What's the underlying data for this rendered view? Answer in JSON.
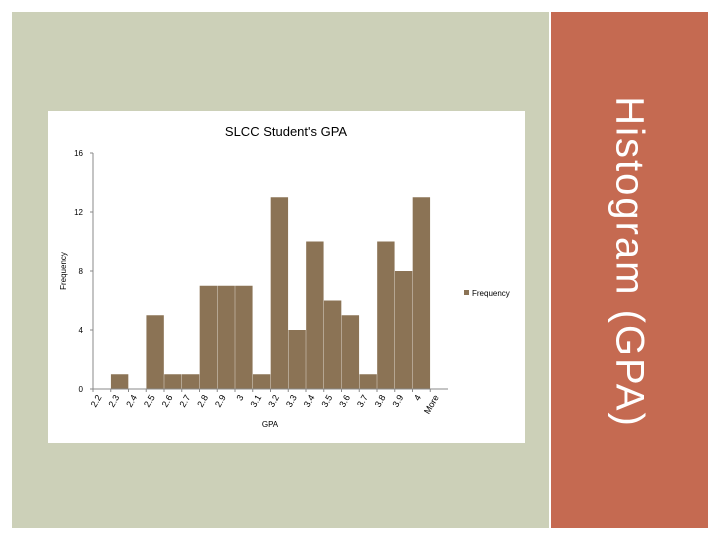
{
  "slide": {
    "side_title": "Histogram (GPA)",
    "background_color": "#ccd0b8",
    "panel_color": "#c56a51"
  },
  "chart_data": {
    "type": "bar",
    "title": "SLCC Student's GPA",
    "xlabel": "GPA",
    "ylabel": "Frequency",
    "ylim": [
      0,
      16
    ],
    "yticks": [
      0,
      4,
      8,
      12,
      16
    ],
    "grid": false,
    "legend_position": "right",
    "bar_color": "#8b7355",
    "categories": [
      "2.2",
      "2.3",
      "2.4",
      "2.5",
      "2.6",
      "2.7",
      "2.8",
      "2.9",
      "3",
      "3.1",
      "3.2",
      "3.3",
      "3.4",
      "3.5",
      "3.6",
      "3.7",
      "3.8",
      "3.9",
      "4",
      "More"
    ],
    "series": [
      {
        "name": "Frequency",
        "values": [
          0,
          1,
          0,
          5,
          1,
          1,
          7,
          7,
          7,
          1,
          13,
          4,
          10,
          6,
          5,
          1,
          10,
          8,
          13,
          0
        ]
      }
    ]
  }
}
